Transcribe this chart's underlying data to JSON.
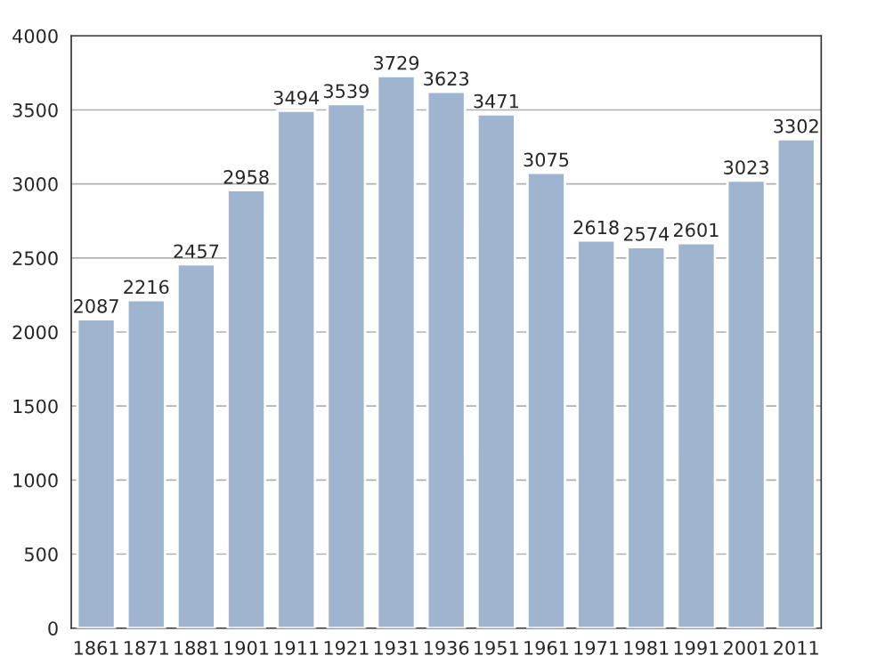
{
  "chart_data": {
    "type": "bar",
    "categories": [
      "1861",
      "1871",
      "1881",
      "1901",
      "1911",
      "1921",
      "1931",
      "1936",
      "1951",
      "1961",
      "1971",
      "1981",
      "1991",
      "2001",
      "2011"
    ],
    "values": [
      2087,
      2216,
      2457,
      2958,
      3494,
      3539,
      3729,
      3623,
      3471,
      3075,
      2618,
      2574,
      2601,
      3023,
      3302
    ],
    "color": "#9fb4cf",
    "ylim": [
      0,
      4000
    ],
    "yticks": [
      0,
      500,
      1000,
      1500,
      2000,
      2500,
      3000,
      3500,
      4000
    ],
    "grid": "y",
    "data_labels": true
  }
}
